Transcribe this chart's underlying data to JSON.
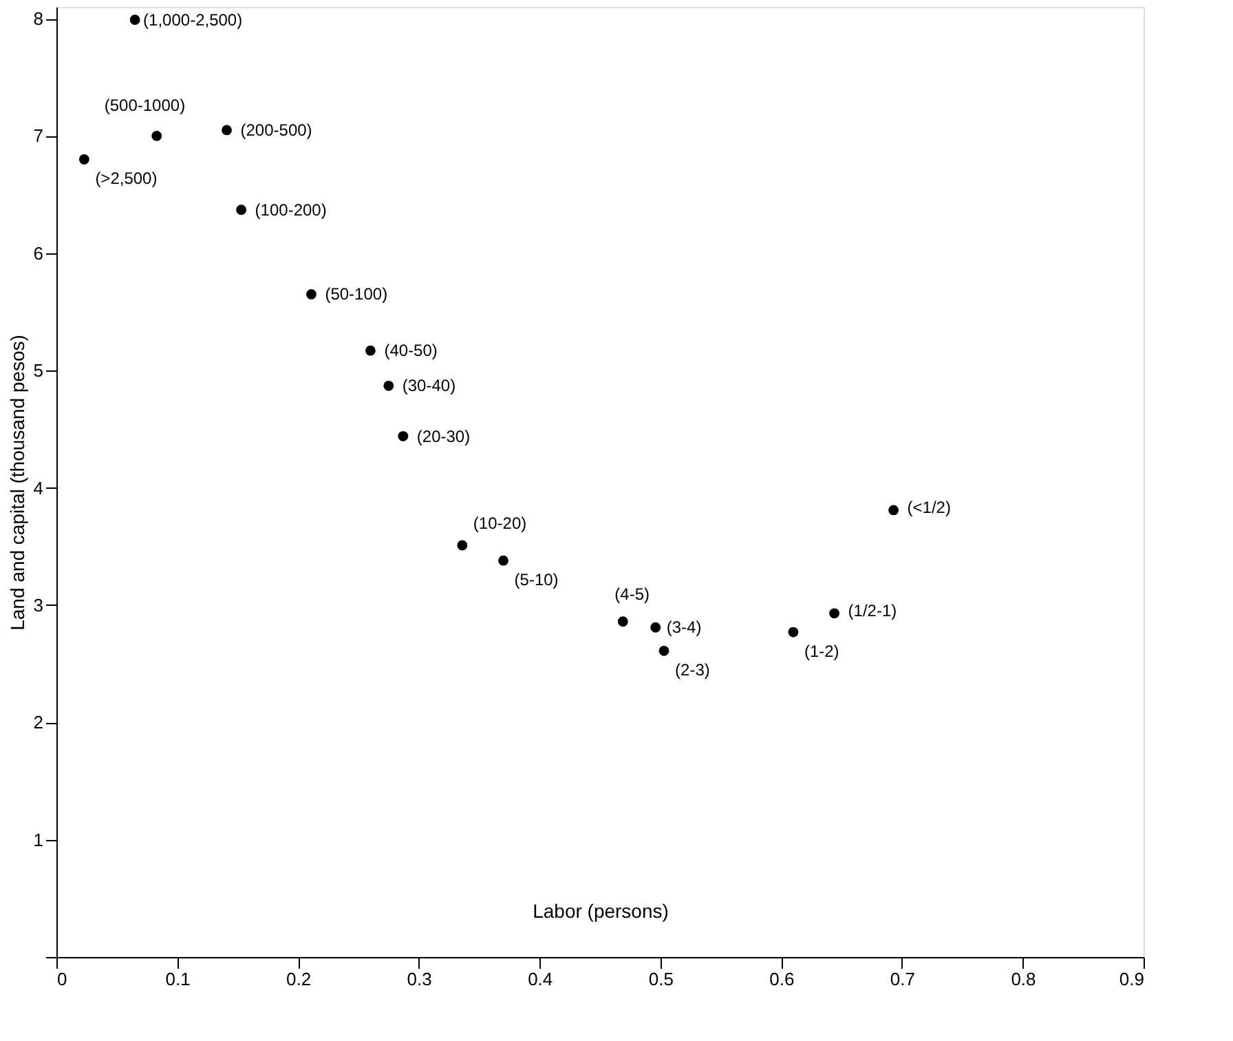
{
  "chart_data": {
    "type": "scatter",
    "xlabel": "Labor (persons)",
    "ylabel": "Land and capital (thousand pesos)",
    "x": [
      0.065,
      0.083,
      0.141,
      0.023,
      0.153,
      0.211,
      0.26,
      0.275,
      0.287,
      0.336,
      0.37,
      0.469,
      0.496,
      0.503,
      0.61,
      0.644,
      0.693
    ],
    "values": [
      7.99,
      7.0,
      7.05,
      6.8,
      6.37,
      5.65,
      5.17,
      4.87,
      4.44,
      3.51,
      3.38,
      2.86,
      2.81,
      2.61,
      2.77,
      2.93,
      3.81
    ],
    "color": "#000000",
    "marker": "circle",
    "grid": false,
    "xlim": [
      0,
      0.9
    ],
    "ylim": [
      0,
      8.1
    ],
    "xticks": [
      0,
      0.1,
      0.2,
      0.3,
      0.4,
      0.5,
      0.6,
      0.7,
      0.8,
      0.9
    ],
    "yticks": [
      {
        "value": 0,
        "label": null
      },
      1,
      2,
      3,
      4,
      5,
      6,
      7,
      8
    ],
    "annotations": [
      {
        "text": "(1,000-2,500)",
        "x": 0.065,
        "y": 7.99
      },
      {
        "text": "(500-1000)",
        "x": 0.083,
        "y": 7.0
      },
      {
        "text": "(200-500)",
        "x": 0.141,
        "y": 7.05
      },
      {
        "text": "(>2,500)",
        "x": 0.023,
        "y": 6.8
      },
      {
        "text": "(100-200)",
        "x": 0.153,
        "y": 6.37
      },
      {
        "text": "(50-100)",
        "x": 0.211,
        "y": 5.65
      },
      {
        "text": "(40-50)",
        "x": 0.26,
        "y": 5.17
      },
      {
        "text": "(30-40)",
        "x": 0.275,
        "y": 4.87
      },
      {
        "text": "(20-30)",
        "x": 0.287,
        "y": 4.44
      },
      {
        "text": "(10-20)",
        "x": 0.336,
        "y": 3.51
      },
      {
        "text": "(5-10)",
        "x": 0.37,
        "y": 3.38
      },
      {
        "text": "(4-5)",
        "x": 0.469,
        "y": 2.86
      },
      {
        "text": "(3-4)",
        "x": 0.496,
        "y": 2.81
      },
      {
        "text": "(2-3)",
        "x": 0.503,
        "y": 2.61
      },
      {
        "text": "(1-2)",
        "x": 0.61,
        "y": 2.77
      },
      {
        "text": "(1/2-1)",
        "x": 0.644,
        "y": 2.93
      },
      {
        "text": "(<1/2)",
        "x": 0.693,
        "y": 3.81
      }
    ]
  }
}
